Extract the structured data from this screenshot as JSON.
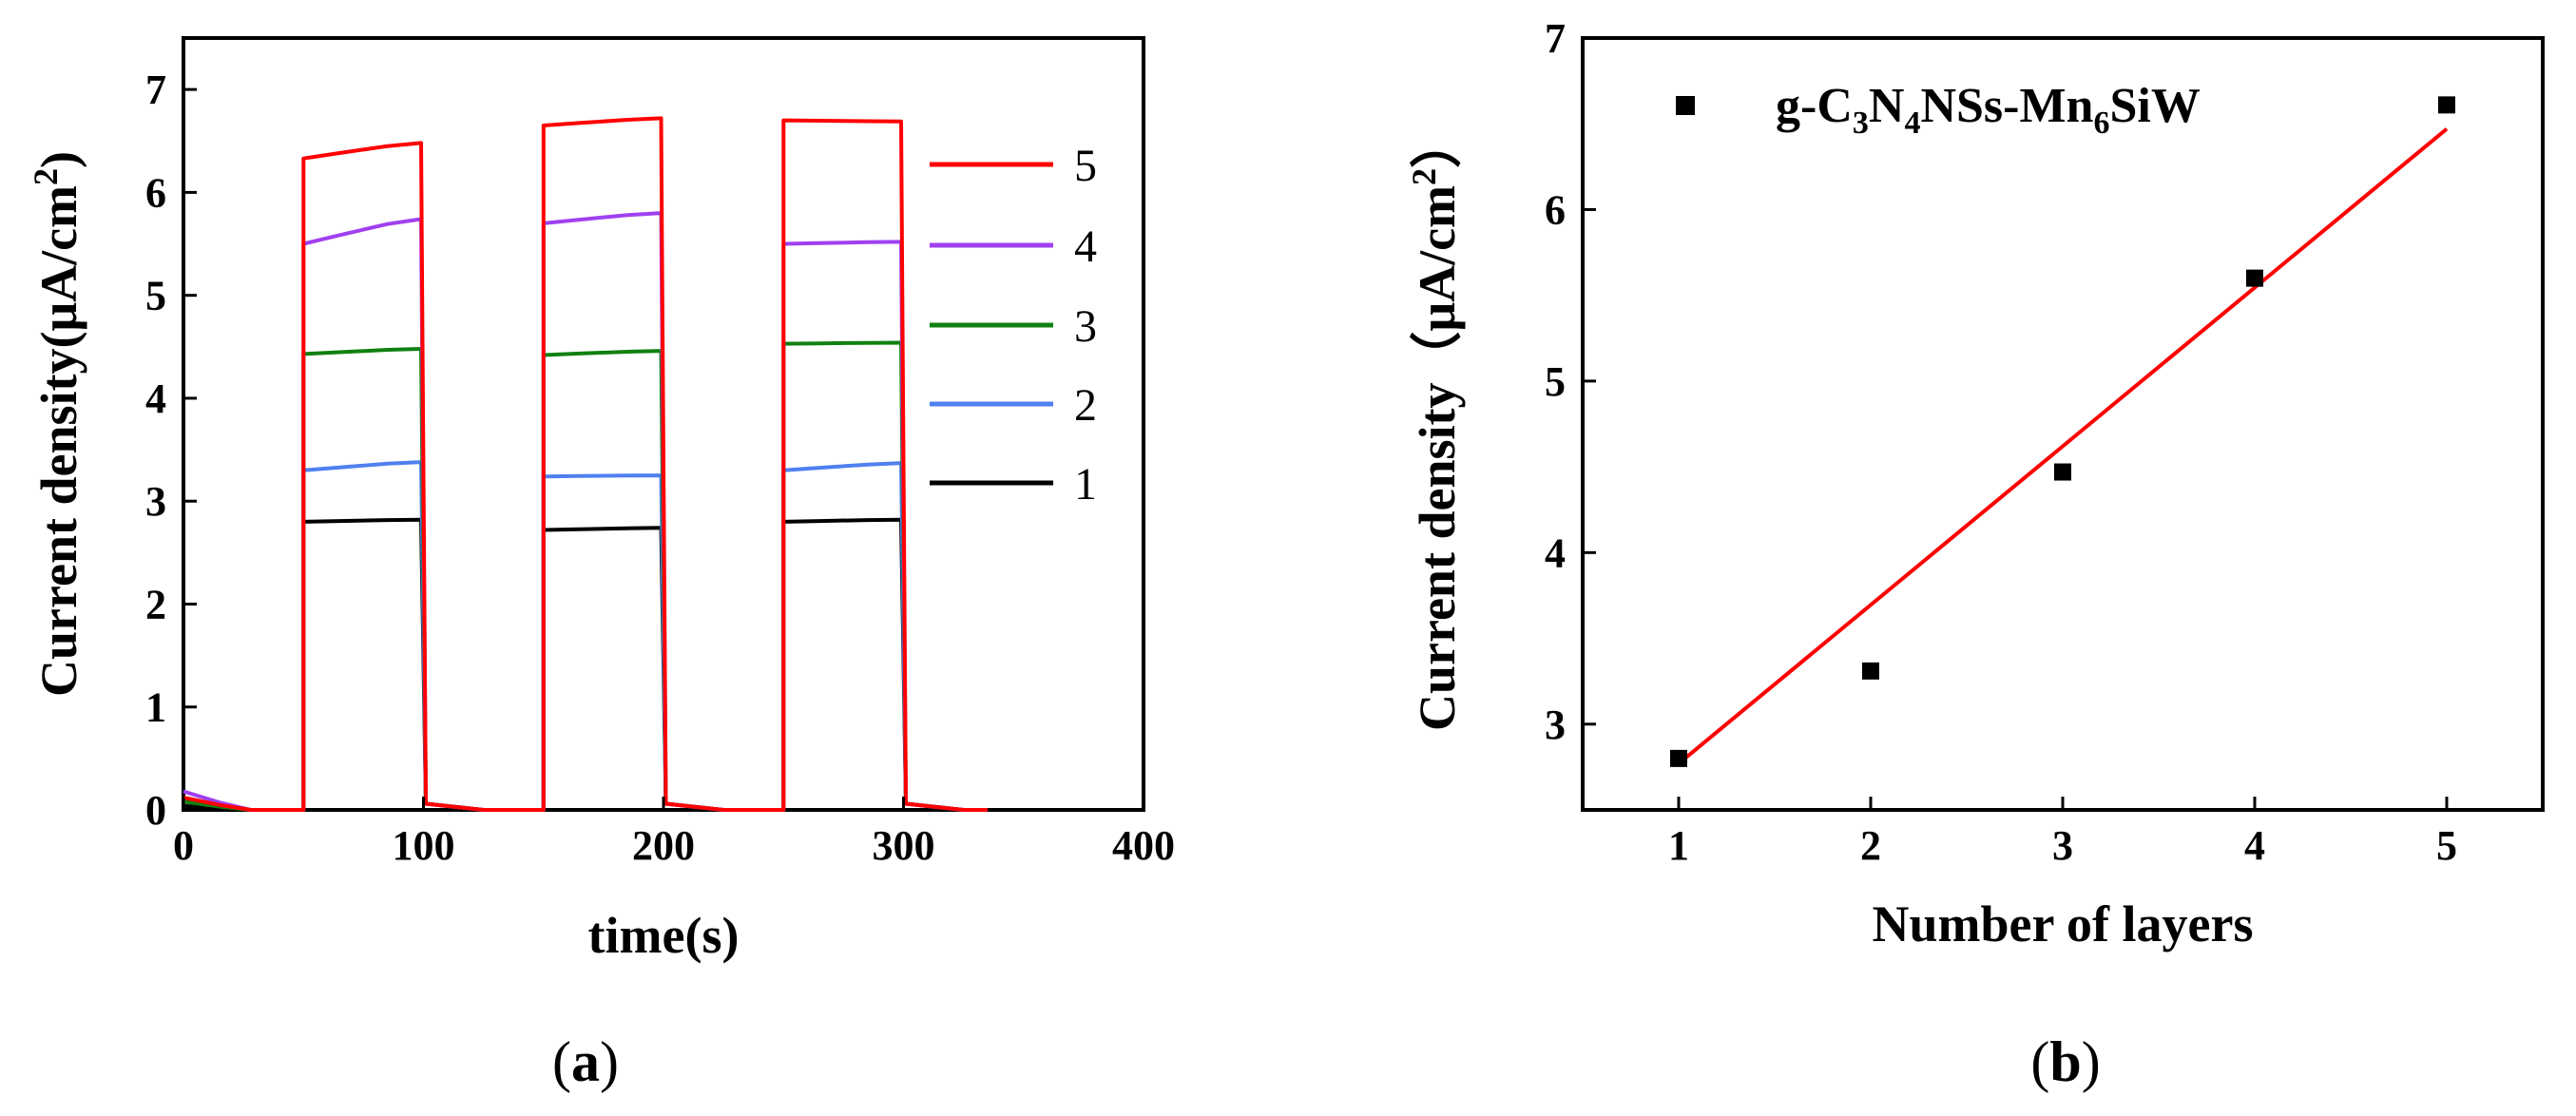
{
  "chart_data": [
    {
      "type": "line",
      "panel_label": "a",
      "xlabel": "time(s)",
      "ylabel": "Current density(μA/cm²)",
      "ylabel_main": "Current density(μA/cm",
      "ylabel_sup": "2",
      "ylabel_end": ")",
      "xlim": [
        0,
        400
      ],
      "ylim": [
        0,
        7.5
      ],
      "xticks": [
        0,
        100,
        200,
        300,
        400
      ],
      "yticks": [
        0,
        1,
        2,
        3,
        4,
        5,
        6,
        7
      ],
      "legend_position": "right",
      "light_on_intervals": [
        [
          50,
          100
        ],
        [
          150,
          200
        ],
        [
          250,
          300
        ]
      ],
      "series": [
        {
          "name": "5",
          "color": "#ff0000",
          "on_levels": [
            [
              6.33,
              6.48
            ],
            [
              6.65,
              6.72
            ],
            [
              6.7,
              6.69
            ]
          ],
          "initial": 0.12
        },
        {
          "name": "4",
          "color": "#a040f0",
          "on_levels": [
            [
              5.5,
              5.74
            ],
            [
              5.7,
              5.8
            ],
            [
              5.5,
              5.52
            ]
          ],
          "initial": 0.18
        },
        {
          "name": "3",
          "color": "#108010",
          "on_levels": [
            [
              4.43,
              4.48
            ],
            [
              4.42,
              4.46
            ],
            [
              4.53,
              4.54
            ]
          ],
          "initial": 0.08
        },
        {
          "name": "2",
          "color": "#5080f0",
          "on_levels": [
            [
              3.3,
              3.38
            ],
            [
              3.24,
              3.25
            ],
            [
              3.3,
              3.37
            ]
          ],
          "initial": 0.1
        },
        {
          "name": "1",
          "color": "#000000",
          "on_levels": [
            [
              2.8,
              2.82
            ],
            [
              2.72,
              2.74
            ],
            [
              2.8,
              2.82
            ]
          ],
          "initial": 0.04
        }
      ]
    },
    {
      "type": "scatter",
      "panel_label": "b",
      "xlabel": "Number of layers",
      "ylabel": "Current density（μA/cm²）",
      "ylabel_main": "Current density（μA/cm",
      "ylabel_sup": "2",
      "ylabel_end": "）",
      "xlim": [
        0.5,
        5.5
      ],
      "ylim": [
        2.5,
        7
      ],
      "xticks": [
        1,
        2,
        3,
        4,
        5
      ],
      "yticks": [
        3,
        4,
        5,
        6,
        7
      ],
      "legend_position": "top-left",
      "legend_label": "g-C3N4NSs-Mn6SiW",
      "legend_parts": {
        "a": "g-C",
        "b": "3",
        "c": "N",
        "d": "4",
        "e": "NSs-Mn",
        "f": "6",
        "g": "SiW"
      },
      "series": [
        {
          "name": "g-C3N4NSs-Mn6SiW",
          "color": "#000000",
          "x": [
            1,
            2,
            3,
            4,
            5
          ],
          "y": [
            2.8,
            3.31,
            4.47,
            5.6,
            6.61
          ]
        }
      ],
      "fit_line": {
        "color": "#ff0000",
        "x": [
          1,
          5
        ],
        "y": [
          2.77,
          6.47
        ]
      }
    }
  ]
}
